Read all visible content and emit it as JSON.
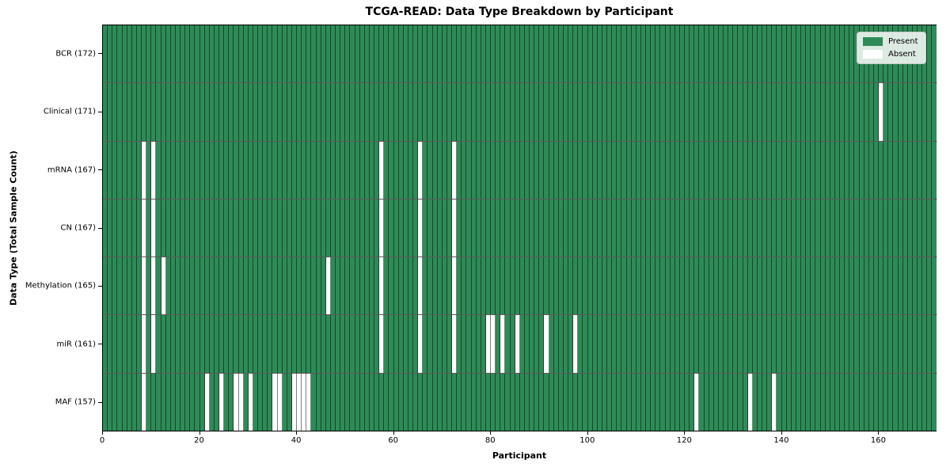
{
  "title": "TCGA-READ: Data Type Breakdown by Participant",
  "chart_data": {
    "type": "heatmap",
    "title": "TCGA-READ: Data Type Breakdown by Participant",
    "xlabel": "Participant",
    "ylabel": "Data Type (Total Sample Count)",
    "n_participants": 172,
    "x_ticks": [
      0,
      20,
      40,
      60,
      80,
      100,
      120,
      140,
      160
    ],
    "grid": "cell-borders-on",
    "legend_position": "upper-right",
    "rows": [
      {
        "name": "bcr",
        "label": "BCR (172)",
        "total_samples": 172,
        "absent_participants": []
      },
      {
        "name": "clinical",
        "label": "Clinical (171)",
        "total_samples": 171,
        "absent_participants": [
          160
        ]
      },
      {
        "name": "mrna",
        "label": "mRNA (167)",
        "total_samples": 167,
        "absent_participants": [
          8,
          10,
          57,
          65,
          72
        ]
      },
      {
        "name": "cn",
        "label": "CN (167)",
        "total_samples": 167,
        "absent_participants": [
          8,
          10,
          57,
          65,
          72
        ]
      },
      {
        "name": "methylation",
        "label": "Methylation (165)",
        "total_samples": 165,
        "absent_participants": [
          8,
          10,
          12,
          46,
          57,
          65,
          72
        ]
      },
      {
        "name": "mir",
        "label": "miR (161)",
        "total_samples": 161,
        "absent_participants": [
          8,
          10,
          57,
          65,
          72,
          79,
          80,
          82,
          85,
          91,
          97
        ]
      },
      {
        "name": "maf",
        "label": "MAF (157)",
        "total_samples": 157,
        "absent_participants": [
          8,
          21,
          24,
          27,
          28,
          30,
          35,
          36,
          39,
          40,
          41,
          42,
          122,
          133,
          138
        ]
      }
    ],
    "legend": [
      {
        "label": "Present",
        "color": "#2e8b57"
      },
      {
        "label": "Absent",
        "color": "#ffffff"
      }
    ],
    "colors": {
      "present": "#2e8b57",
      "absent": "#ffffff",
      "cell_edge": "rgba(0,0,0,0.5)",
      "axes_frame": "#000000"
    }
  }
}
